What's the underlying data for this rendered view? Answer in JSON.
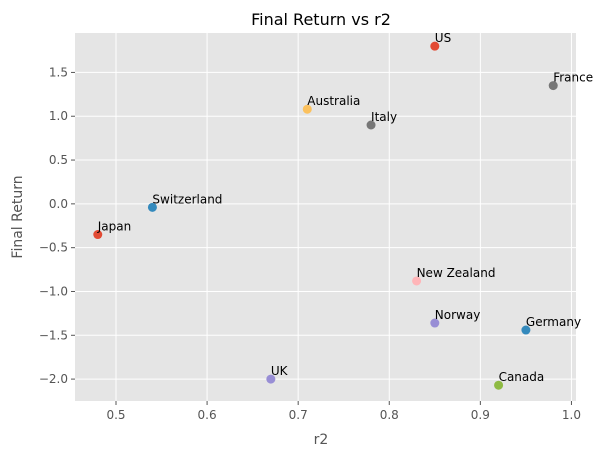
{
  "chart_data": {
    "type": "scatter",
    "title": "Final Return vs r2",
    "xlabel": "r2",
    "ylabel": "Final Return",
    "xlim": [
      0.455,
      1.005
    ],
    "ylim": [
      -2.25,
      1.95
    ],
    "xticks": [
      "0.5",
      "0.6",
      "0.7",
      "0.8",
      "0.9",
      "1.0"
    ],
    "yticks": [
      "1.5",
      "1.0",
      "0.5",
      "0.0",
      "−0.5",
      "−1.0",
      "−1.5",
      "−2.0"
    ],
    "grid": true,
    "background": "#e5e5e5",
    "points": [
      {
        "label": "US",
        "x": 0.85,
        "y": 1.8,
        "color": "#e24a33"
      },
      {
        "label": "France",
        "x": 0.98,
        "y": 1.35,
        "color": "#777777"
      },
      {
        "label": "Australia",
        "x": 0.71,
        "y": 1.08,
        "color": "#fbc15e"
      },
      {
        "label": "Italy",
        "x": 0.78,
        "y": 0.9,
        "color": "#777777"
      },
      {
        "label": "Switzerland",
        "x": 0.54,
        "y": -0.04,
        "color": "#348abd"
      },
      {
        "label": "Japan",
        "x": 0.48,
        "y": -0.35,
        "color": "#e24a33"
      },
      {
        "label": "New Zealand",
        "x": 0.83,
        "y": -0.88,
        "color": "#ffb5b8"
      },
      {
        "label": "Norway",
        "x": 0.85,
        "y": -1.36,
        "color": "#988ed5"
      },
      {
        "label": "Germany",
        "x": 0.95,
        "y": -1.44,
        "color": "#348abd"
      },
      {
        "label": "UK",
        "x": 0.67,
        "y": -2.0,
        "color": "#988ed5"
      },
      {
        "label": "Canada",
        "x": 0.92,
        "y": -2.07,
        "color": "#8eba42"
      }
    ]
  }
}
